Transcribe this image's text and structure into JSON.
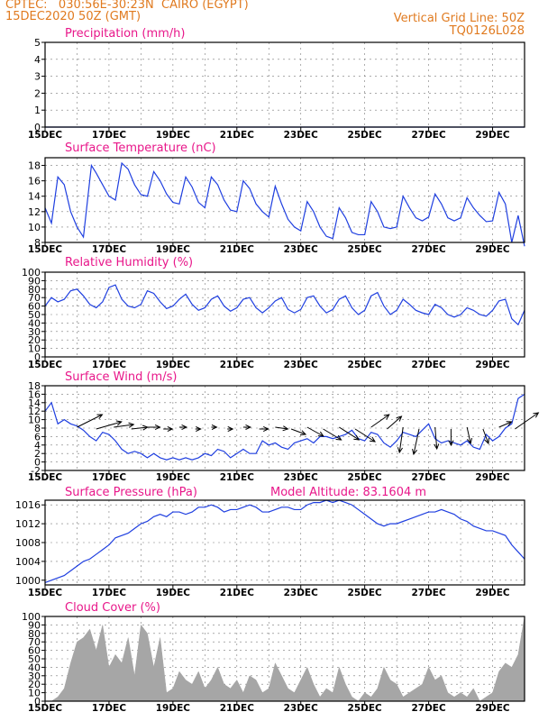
{
  "header": {
    "line1": "CPTEC:   030:56E-30:23N  CAIRO (EGYPT)",
    "line2": "15DEC2020 50Z (GMT)",
    "grid_note": "Vertical Grid Line: 50Z",
    "code": "TQ0126L028"
  },
  "colors": {
    "header": "#e07a1f",
    "panel_title": "#e8178a",
    "series": "#1f3fe0",
    "cloud_fill": "#a6a6a6",
    "grid": "#7a7a7a"
  },
  "chart_data": [
    {
      "id": "precip",
      "type": "line",
      "title": "Precipitation (mm/h)",
      "ylim": [
        0,
        5
      ],
      "yticks": [
        0,
        1,
        2,
        3,
        4,
        5
      ],
      "x": [
        15,
        15.5,
        16,
        16.5,
        17,
        17.5,
        18,
        18.5,
        19,
        19.5,
        20,
        20.5,
        21,
        21.5,
        22,
        22.5,
        23,
        23.5,
        24,
        24.5,
        25,
        25.5,
        26,
        26.5,
        27,
        27.5,
        28,
        28.5,
        29,
        29.5,
        30
      ],
      "values": [
        0,
        0,
        0,
        0,
        0,
        0,
        0,
        0,
        0,
        0,
        0,
        0,
        0,
        0,
        0,
        0,
        0,
        0,
        0,
        0,
        0,
        0,
        0,
        0,
        0,
        0,
        0,
        0,
        0,
        0,
        0
      ],
      "xticks": [
        "15DEC",
        "17DEC",
        "19DEC",
        "21DEC",
        "23DEC",
        "25DEC",
        "27DEC",
        "29DEC"
      ],
      "grid": true
    },
    {
      "id": "temp",
      "type": "line",
      "title": "Surface Temperature (nC)",
      "ylim": [
        8,
        19
      ],
      "yticks": [
        8,
        10,
        12,
        14,
        16,
        18
      ],
      "x": [
        15.0,
        15.2,
        15.4,
        15.6,
        15.8,
        16.0,
        16.2,
        16.45,
        16.6,
        16.8,
        17.0,
        17.2,
        17.4,
        17.6,
        17.8,
        18.0,
        18.2,
        18.4,
        18.6,
        18.8,
        19.0,
        19.2,
        19.4,
        19.6,
        19.8,
        20.0,
        20.2,
        20.4,
        20.6,
        20.8,
        21.0,
        21.2,
        21.4,
        21.6,
        21.8,
        22.0,
        22.2,
        22.4,
        22.6,
        22.8,
        23.0,
        23.2,
        23.4,
        23.6,
        23.8,
        24.0,
        24.2,
        24.4,
        24.6,
        24.8,
        25.0,
        25.2,
        25.4,
        25.6,
        25.8,
        26.0,
        26.2,
        26.4,
        26.6,
        26.8,
        27.0,
        27.2,
        27.4,
        27.6,
        27.8,
        28.0,
        28.2,
        28.4,
        28.6,
        28.8,
        29.0,
        29.2,
        29.4,
        29.6,
        29.8,
        30.0
      ],
      "values": [
        12.5,
        10.5,
        16.5,
        15.5,
        12.0,
        10.0,
        8.7,
        18.0,
        17.0,
        15.5,
        14.0,
        13.5,
        18.3,
        17.5,
        15.5,
        14.2,
        14.0,
        17.2,
        16.0,
        14.3,
        13.2,
        13.0,
        16.5,
        15.2,
        13.2,
        12.5,
        16.5,
        15.5,
        13.5,
        12.2,
        12.0,
        16.0,
        15.0,
        13.0,
        12.0,
        11.3,
        15.3,
        13.0,
        11.0,
        10.0,
        9.5,
        13.3,
        12.0,
        10.0,
        8.8,
        8.5,
        12.5,
        11.2,
        9.3,
        9.0,
        9.0,
        13.3,
        12.0,
        10.0,
        9.8,
        10.0,
        14.0,
        12.5,
        11.2,
        10.8,
        11.3,
        14.3,
        13.0,
        11.2,
        10.8,
        11.2,
        13.8,
        12.5,
        11.5,
        10.7,
        10.8,
        14.5,
        13.0,
        8.0,
        11.5,
        7.5
      ],
      "xticks": [
        "15DEC",
        "17DEC",
        "19DEC",
        "21DEC",
        "23DEC",
        "25DEC",
        "27DEC",
        "29DEC"
      ],
      "grid": true
    },
    {
      "id": "rh",
      "type": "line",
      "title": "Relative Humidity (%)",
      "ylim": [
        0,
        100
      ],
      "yticks": [
        0,
        10,
        20,
        30,
        40,
        50,
        60,
        70,
        80,
        90,
        100
      ],
      "x": [
        15.0,
        15.2,
        15.4,
        15.6,
        15.8,
        16.0,
        16.2,
        16.4,
        16.6,
        16.8,
        17.0,
        17.2,
        17.4,
        17.6,
        17.8,
        18.0,
        18.2,
        18.4,
        18.6,
        18.8,
        19.0,
        19.2,
        19.4,
        19.6,
        19.8,
        20.0,
        20.2,
        20.4,
        20.6,
        20.8,
        21.0,
        21.2,
        21.4,
        21.6,
        21.8,
        22.0,
        22.2,
        22.4,
        22.6,
        22.8,
        23.0,
        23.2,
        23.4,
        23.6,
        23.8,
        24.0,
        24.2,
        24.4,
        24.6,
        24.8,
        25.0,
        25.2,
        25.4,
        25.6,
        25.8,
        26.0,
        26.2,
        26.4,
        26.6,
        26.8,
        27.0,
        27.2,
        27.4,
        27.6,
        27.8,
        28.0,
        28.2,
        28.4,
        28.6,
        28.8,
        29.0,
        29.2,
        29.4,
        29.6,
        29.8,
        30.0
      ],
      "values": [
        60,
        70,
        65,
        68,
        78,
        80,
        72,
        62,
        58,
        65,
        82,
        85,
        68,
        60,
        58,
        62,
        78,
        75,
        65,
        57,
        60,
        68,
        74,
        62,
        55,
        58,
        68,
        72,
        60,
        54,
        58,
        68,
        70,
        58,
        52,
        58,
        66,
        70,
        56,
        52,
        56,
        70,
        72,
        60,
        52,
        56,
        68,
        72,
        58,
        50,
        55,
        72,
        76,
        60,
        50,
        55,
        68,
        62,
        55,
        52,
        50,
        62,
        58,
        50,
        47,
        50,
        58,
        55,
        50,
        48,
        55,
        66,
        68,
        45,
        38,
        55
      ],
      "xticks": [
        "15DEC",
        "17DEC",
        "19DEC",
        "21DEC",
        "23DEC",
        "25DEC",
        "27DEC",
        "29DEC"
      ],
      "grid": true
    },
    {
      "id": "wind",
      "type": "line",
      "title": "Surface Wind (m/s)",
      "ylim": [
        -2,
        18
      ],
      "yticks": [
        -2,
        0,
        2,
        4,
        6,
        8,
        10,
        12,
        14,
        16,
        18
      ],
      "x": [
        15.0,
        15.2,
        15.4,
        15.6,
        15.8,
        16.0,
        16.2,
        16.4,
        16.6,
        16.8,
        17.0,
        17.2,
        17.4,
        17.6,
        17.8,
        18.0,
        18.2,
        18.4,
        18.6,
        18.8,
        19.0,
        19.2,
        19.4,
        19.6,
        19.8,
        20.0,
        20.2,
        20.4,
        20.6,
        20.8,
        21.0,
        21.2,
        21.4,
        21.6,
        21.8,
        22.0,
        22.2,
        22.4,
        22.6,
        22.8,
        23.0,
        23.2,
        23.4,
        23.6,
        23.8,
        24.0,
        24.2,
        24.4,
        24.6,
        24.8,
        25.0,
        25.2,
        25.4,
        25.6,
        25.8,
        26.0,
        26.2,
        26.4,
        26.6,
        26.8,
        27.0,
        27.2,
        27.4,
        27.6,
        27.8,
        28.0,
        28.2,
        28.4,
        28.6,
        28.8,
        29.0,
        29.2,
        29.4,
        29.6,
        29.8,
        30.0
      ],
      "values": [
        12,
        14,
        9,
        10,
        9,
        8.5,
        7.5,
        6,
        5,
        7,
        6.5,
        5,
        3,
        2,
        2.5,
        2,
        1,
        2,
        1,
        0.5,
        1,
        0.5,
        1,
        0.5,
        1,
        2,
        1.5,
        3,
        2.5,
        1,
        2,
        3,
        2,
        2,
        5,
        4,
        4.5,
        3.5,
        3,
        4.5,
        5,
        5.5,
        4.5,
        6,
        6,
        5.5,
        6,
        6.5,
        7.5,
        5.5,
        5,
        7,
        6.5,
        4.5,
        3.5,
        5,
        7,
        6.5,
        6,
        7.5,
        9,
        5.5,
        4.5,
        5,
        4.5,
        4,
        5,
        3.5,
        3,
        6.5,
        5,
        6,
        8,
        9,
        15,
        16
      ],
      "arrows_x": [
        16,
        16.6,
        17.15,
        17.7,
        18.2,
        18.7,
        19.2,
        19.7,
        20.2,
        20.7,
        21.2,
        21.7,
        22.2,
        22.7,
        23.2,
        23.7,
        24.2,
        24.7,
        25.2,
        25.7,
        26.2,
        26.7,
        27.2,
        27.7,
        28.2,
        28.7,
        29.2,
        29.7
      ],
      "xticks": [
        "15DEC",
        "17DEC",
        "19DEC",
        "21DEC",
        "23DEC",
        "25DEC",
        "27DEC",
        "29DEC"
      ],
      "grid": true
    },
    {
      "id": "pres",
      "type": "line",
      "title": "Surface Pressure (hPa)",
      "extra_label": "Model Altitude: 83.1604 m",
      "ylim": [
        999,
        1017
      ],
      "yticks": [
        1000,
        1004,
        1008,
        1012,
        1016
      ],
      "x": [
        15.0,
        15.2,
        15.4,
        15.6,
        15.8,
        16.0,
        16.2,
        16.4,
        16.6,
        16.8,
        17.0,
        17.2,
        17.4,
        17.6,
        17.8,
        18.0,
        18.2,
        18.4,
        18.6,
        18.8,
        19.0,
        19.2,
        19.4,
        19.6,
        19.8,
        20.0,
        20.2,
        20.4,
        20.6,
        20.8,
        21.0,
        21.2,
        21.4,
        21.6,
        21.8,
        22.0,
        22.2,
        22.4,
        22.6,
        22.8,
        23.0,
        23.2,
        23.4,
        23.6,
        23.8,
        24.0,
        24.2,
        24.4,
        24.6,
        24.8,
        25.0,
        25.2,
        25.4,
        25.6,
        25.8,
        26.0,
        26.2,
        26.4,
        26.6,
        26.8,
        27.0,
        27.2,
        27.4,
        27.6,
        27.8,
        28.0,
        28.2,
        28.4,
        28.6,
        28.8,
        29.0,
        29.2,
        29.4,
        29.6,
        29.8,
        30.0
      ],
      "values": [
        999.5,
        1000,
        1000.5,
        1001,
        1002,
        1003,
        1004,
        1004.5,
        1005.5,
        1006.5,
        1007.5,
        1009,
        1009.5,
        1010,
        1011,
        1012,
        1012.5,
        1013.5,
        1014,
        1013.5,
        1014.5,
        1014.5,
        1014,
        1014.5,
        1015.5,
        1015.5,
        1016,
        1015.5,
        1014.5,
        1015,
        1015,
        1015.5,
        1016,
        1015.5,
        1014.5,
        1014.5,
        1015,
        1015.5,
        1015.5,
        1015,
        1015,
        1016,
        1016.5,
        1016.5,
        1017,
        1016.5,
        1017,
        1016.5,
        1016,
        1015,
        1014,
        1013,
        1012,
        1011.5,
        1012,
        1012,
        1012.5,
        1013,
        1013.5,
        1014,
        1014.5,
        1014.5,
        1015,
        1014.5,
        1014,
        1013,
        1012.5,
        1011.5,
        1011,
        1010.5,
        1010.5,
        1010,
        1009.5,
        1007.5,
        1006,
        1004.5
      ],
      "xticks": [
        "15DEC",
        "17DEC",
        "19DEC",
        "21DEC",
        "23DEC",
        "25DEC",
        "27DEC",
        "29DEC"
      ],
      "grid": true
    },
    {
      "id": "cloud",
      "type": "area",
      "title": "Cloud Cover (%)",
      "ylim": [
        0,
        100
      ],
      "yticks": [
        0,
        10,
        20,
        30,
        40,
        50,
        60,
        70,
        80,
        90,
        100
      ],
      "x": [
        15.0,
        15.2,
        15.4,
        15.6,
        15.8,
        16.0,
        16.2,
        16.4,
        16.6,
        16.8,
        17.0,
        17.2,
        17.4,
        17.6,
        17.8,
        18.0,
        18.2,
        18.4,
        18.6,
        18.8,
        19.0,
        19.2,
        19.4,
        19.6,
        19.8,
        20.0,
        20.2,
        20.4,
        20.6,
        20.8,
        21.0,
        21.2,
        21.4,
        21.6,
        21.8,
        22.0,
        22.2,
        22.4,
        22.6,
        22.8,
        23.0,
        23.2,
        23.4,
        23.6,
        23.8,
        24.0,
        24.2,
        24.4,
        24.6,
        24.8,
        25.0,
        25.2,
        25.4,
        25.6,
        25.8,
        26.0,
        26.2,
        26.4,
        26.6,
        26.8,
        27.0,
        27.2,
        27.4,
        27.6,
        27.8,
        28.0,
        28.2,
        28.4,
        28.6,
        28.8,
        29.0,
        29.2,
        29.4,
        29.6,
        29.8,
        30.0
      ],
      "values": [
        0,
        0,
        5,
        15,
        45,
        70,
        75,
        85,
        60,
        90,
        40,
        55,
        45,
        75,
        30,
        90,
        80,
        40,
        75,
        10,
        15,
        35,
        25,
        20,
        35,
        15,
        25,
        40,
        20,
        15,
        25,
        10,
        30,
        25,
        10,
        15,
        45,
        30,
        15,
        10,
        25,
        40,
        20,
        5,
        15,
        10,
        40,
        20,
        5,
        0,
        10,
        5,
        15,
        40,
        25,
        20,
        5,
        10,
        15,
        20,
        40,
        25,
        30,
        10,
        5,
        10,
        5,
        15,
        0,
        5,
        10,
        35,
        45,
        40,
        55,
        100
      ],
      "xticks": [
        "15DEC",
        "17DEC",
        "19DEC",
        "21DEC",
        "23DEC",
        "25DEC",
        "27DEC",
        "29DEC"
      ],
      "grid": true
    }
  ]
}
